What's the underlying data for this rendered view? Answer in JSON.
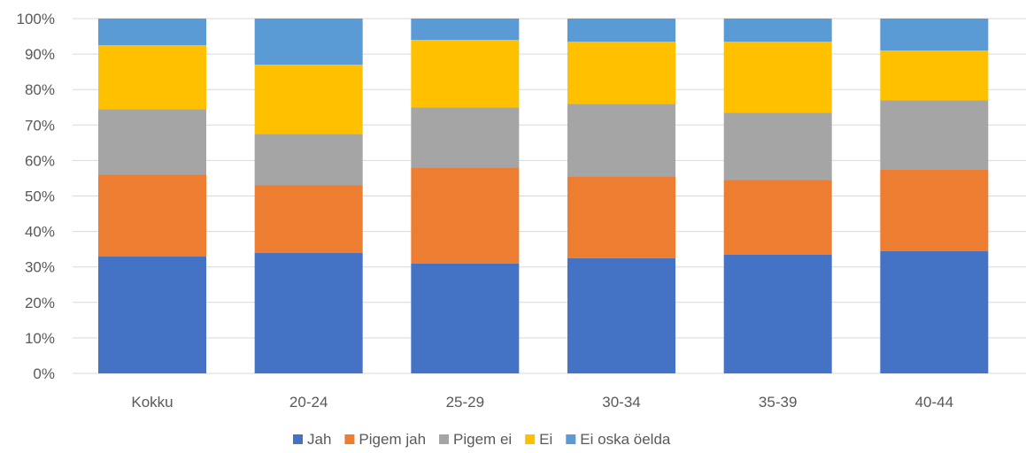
{
  "chart_data": {
    "type": "bar",
    "stacked": true,
    "percent": true,
    "categories": [
      "Kokku",
      "20-24",
      "25-29",
      "30-34",
      "35-39",
      "40-44"
    ],
    "series": [
      {
        "name": "Jah",
        "color": "#4472C4",
        "values": [
          33,
          34,
          31,
          32.5,
          33.5,
          34.5
        ]
      },
      {
        "name": "Pigem jah",
        "color": "#ED7D31",
        "values": [
          23,
          19,
          27,
          23,
          21,
          23
        ]
      },
      {
        "name": "Pigem ei",
        "color": "#A5A5A5",
        "values": [
          18.5,
          14.5,
          17,
          20.5,
          19,
          19.5
        ]
      },
      {
        "name": "Ei",
        "color": "#FFC000",
        "values": [
          18,
          19.5,
          19,
          17.5,
          20,
          14
        ]
      },
      {
        "name": "Ei oska öelda",
        "color": "#5B9BD5",
        "values": [
          7.5,
          13,
          6,
          6.5,
          6.5,
          9
        ]
      }
    ],
    "yticks": [
      "0%",
      "10%",
      "20%",
      "30%",
      "40%",
      "50%",
      "60%",
      "70%",
      "80%",
      "90%",
      "100%"
    ],
    "ylim": [
      0,
      100
    ],
    "grid": true,
    "legend_position": "bottom",
    "title": "",
    "xlabel": "",
    "ylabel": ""
  }
}
